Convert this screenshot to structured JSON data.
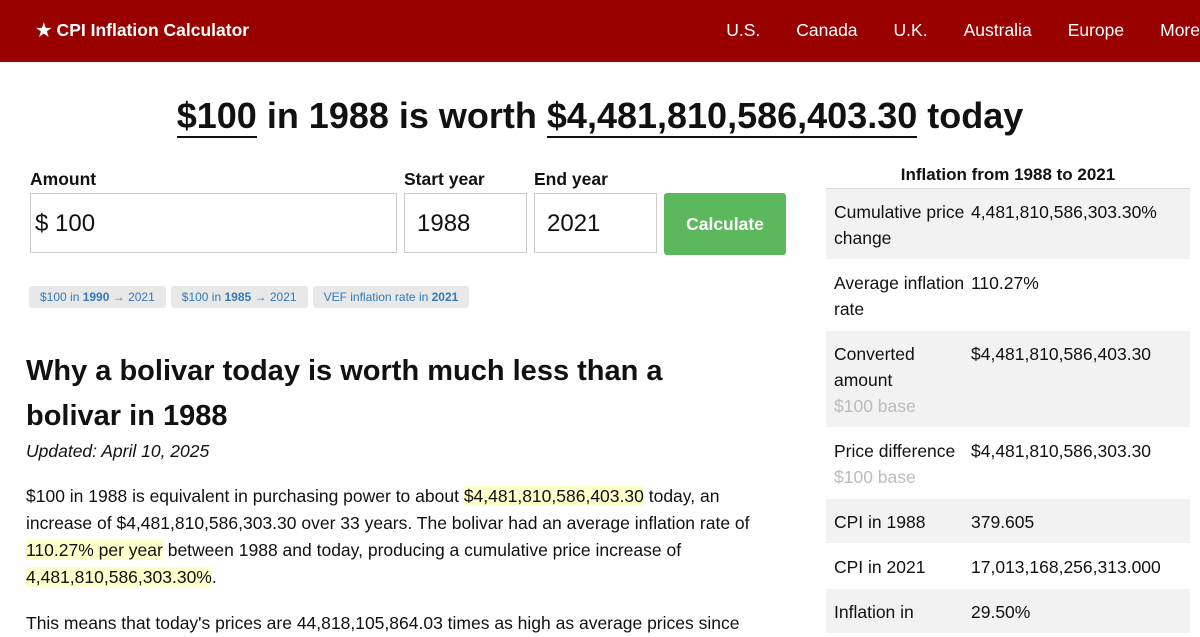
{
  "nav": {
    "brand": "★ CPI Inflation Calculator",
    "links": [
      "U.S.",
      "Canada",
      "U.K.",
      "Australia",
      "Europe",
      "More"
    ]
  },
  "headline": {
    "amount": "$100",
    "middle": " in 1988 is worth ",
    "result": "$4,481,810,586,403.30",
    "end": " today"
  },
  "form": {
    "amount_label": "Amount",
    "start_label": "Start year",
    "end_label": "End year",
    "currency": "$",
    "amount": "100",
    "start_year": "1988",
    "end_year": "2021",
    "button": "Calculate"
  },
  "chips": [
    {
      "prefix": "$100 in ",
      "bold": "1990",
      "suffix": " → 2021"
    },
    {
      "prefix": "$100 in ",
      "bold": "1985",
      "suffix": " → 2021"
    },
    {
      "prefix": "VEF inflation rate in ",
      "bold": "2021"
    }
  ],
  "article": {
    "heading": "Why a bolivar today is worth much less than a bolivar in 1988",
    "updated": "Updated: April 10, 2025",
    "paragraph1": [
      {
        "text": "$100 in 1988 is equivalent in purchasing power to about ",
        "highlight": false
      },
      {
        "text": "$4,481,810,586,403.30",
        "highlight": true
      },
      {
        "text": " today, an increase of $4,481,810,586,303.30 over 33 years. The bolivar had an average inflation rate of ",
        "highlight": false
      },
      {
        "text": "110.27% per year",
        "highlight": true
      },
      {
        "text": " between 1988 and today, producing a cumulative price increase of ",
        "highlight": false
      },
      {
        "text": "4,481,810,586,303.30%",
        "highlight": true
      },
      {
        "text": ".",
        "highlight": false
      }
    ],
    "paragraph2": "This means that today's prices are 44,818,105,864.03 times as high as average prices since"
  },
  "sidebar": {
    "title": "Inflation from 1988 to 2021",
    "rows": [
      {
        "label": "Cumulative price change",
        "value": "4,481,810,586,303.30%"
      },
      {
        "label": "Average inflation rate",
        "value": "110.27%"
      },
      {
        "label": "Converted amount",
        "note": "$100 base",
        "value": "$4,481,810,586,403.30"
      },
      {
        "label": "Price difference",
        "note": "$100 base",
        "value": "$4,481,810,586,303.30"
      },
      {
        "label": "CPI in 1988",
        "value": "379.605"
      },
      {
        "label": "CPI in 2021",
        "value": "17,013,168,256,313.000"
      },
      {
        "label": "Inflation in",
        "value": "29.50%"
      }
    ]
  }
}
